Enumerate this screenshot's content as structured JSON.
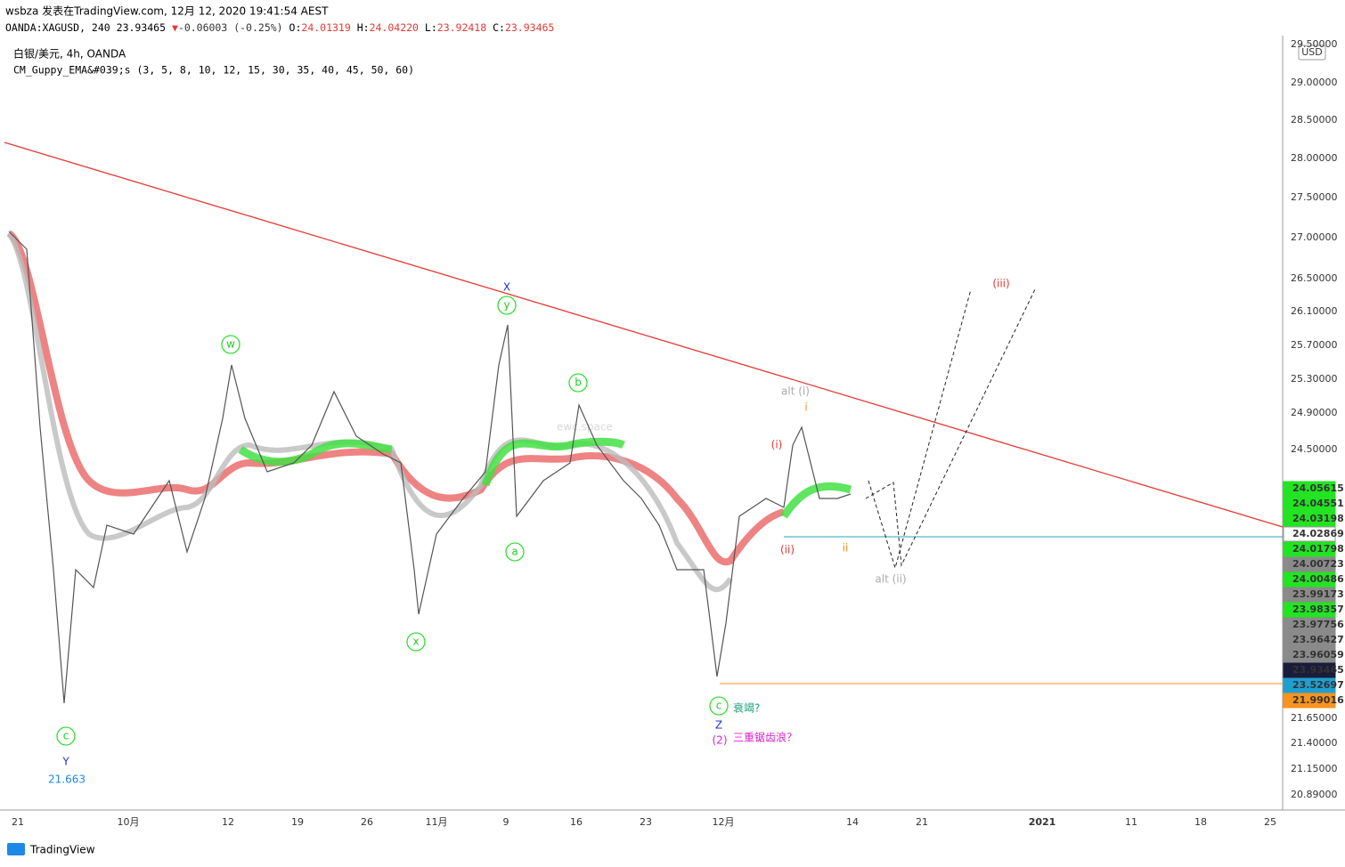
{
  "header": {
    "publisher": "wsbza 发表在TradingView.com, 12月 12, 2020 19:41:54 AEST",
    "symbol": "OANDA:XAGUSD, 240",
    "last": "23.93465",
    "change": "-0.06003 (-0.25%)",
    "o_label": "O:",
    "o": "24.01319",
    "h_label": "H:",
    "h": "24.04220",
    "l_label": "L:",
    "l": "23.92418",
    "c_label": "C:",
    "c": "23.93465"
  },
  "legend": {
    "series": "白银/美元, 4h, OANDA",
    "indicator": "CM_Guppy_EMA&#039;s (3, 5, 8, 10, 12, 15, 30, 35, 40, 45, 50, 60)"
  },
  "price_axis": {
    "currency": "USD",
    "ticks_upper": [
      "29.50000",
      "29.00000",
      "28.50000",
      "28.00000",
      "27.50000",
      "27.00000",
      "26.50000",
      "26.10000",
      "25.70000",
      "25.30000",
      "24.90000",
      "24.50000"
    ],
    "tags": [
      {
        "label": "24.05615",
        "color": "#22e422"
      },
      {
        "label": "24.04551",
        "color": "#22e422"
      },
      {
        "label": "24.03198",
        "color": "#22e422"
      },
      {
        "label": "24.02869",
        "color": "#ffffff"
      },
      {
        "label": "24.01798",
        "color": "#22e422"
      },
      {
        "label": "24.00723",
        "color": "#8a8a8a"
      },
      {
        "label": "24.00486",
        "color": "#22e422"
      },
      {
        "label": "23.99173",
        "color": "#8a8a8a"
      },
      {
        "label": "23.98357",
        "color": "#22e422"
      },
      {
        "label": "23.97756",
        "color": "#8a8a8a"
      },
      {
        "label": "23.96427",
        "color": "#8a8a8a"
      },
      {
        "label": "23.96059",
        "color": "#8a8a8a"
      },
      {
        "label": "23.93465",
        "color": "#1b1b3a"
      },
      {
        "label": "23.52697",
        "color": "#1e9fd0"
      },
      {
        "label": "21.99016",
        "color": "#f7931e"
      }
    ],
    "ticks_lower": [
      "21.65000",
      "21.40000",
      "21.15000",
      "20.89000"
    ]
  },
  "time_axis": [
    "21",
    "10月",
    "12",
    "19",
    "26",
    "11月",
    "9",
    "16",
    "23",
    "12月",
    "14",
    "21",
    "2021",
    "11",
    "18",
    "25"
  ],
  "annotations": {
    "c1": "c",
    "Y": "Y",
    "low": "21.663",
    "w": "w",
    "x": "x",
    "X": "X",
    "y": "y",
    "a": "a",
    "b": "b",
    "c2": "c",
    "exhaustion": "衰竭?",
    "Z": "Z",
    "wave2": "(2)",
    "triple_zigzag": "三重锯齿浪？",
    "alt_i": "alt (i)",
    "i_minor": "i",
    "i": "(i)",
    "ii": "(ii)",
    "ii_minor": "ii",
    "alt_ii": "alt (ii)",
    "iii": "(iii)"
  },
  "watermark": "ewc.space",
  "footer": "TradingView"
}
